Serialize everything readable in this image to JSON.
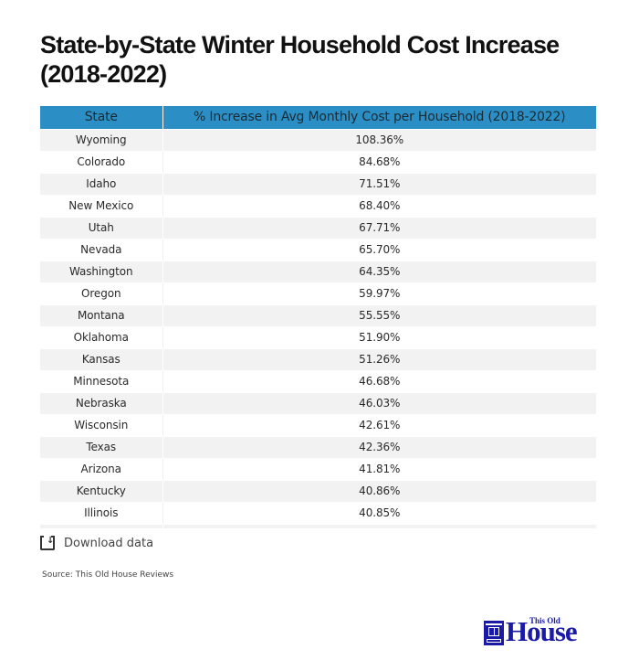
{
  "title": "State-by-State Winter Household Cost Increase (2018-2022)",
  "table": {
    "headers": [
      "State",
      "% Increase in Avg Monthly Cost per Household (2018-2022)"
    ],
    "rows": [
      {
        "state": "Wyoming",
        "value": "108.36%"
      },
      {
        "state": "Colorado",
        "value": "84.68%"
      },
      {
        "state": "Idaho",
        "value": "71.51%"
      },
      {
        "state": "New Mexico",
        "value": "68.40%"
      },
      {
        "state": "Utah",
        "value": "67.71%"
      },
      {
        "state": "Nevada",
        "value": "65.70%"
      },
      {
        "state": "Washington",
        "value": "64.35%"
      },
      {
        "state": "Oregon",
        "value": "59.97%"
      },
      {
        "state": "Montana",
        "value": "55.55%"
      },
      {
        "state": "Oklahoma",
        "value": "51.90%"
      },
      {
        "state": "Kansas",
        "value": "51.26%"
      },
      {
        "state": "Minnesota",
        "value": "46.68%"
      },
      {
        "state": "Nebraska",
        "value": "46.03%"
      },
      {
        "state": "Wisconsin",
        "value": "42.61%"
      },
      {
        "state": "Texas",
        "value": "42.36%"
      },
      {
        "state": "Arizona",
        "value": "41.81%"
      },
      {
        "state": "Kentucky",
        "value": "40.86%"
      },
      {
        "state": "Illinois",
        "value": "40.85%"
      },
      {
        "state": "",
        "value": ""
      }
    ]
  },
  "download": {
    "label": "Download data",
    "icon": "download-icon"
  },
  "source": "Source:  This Old House Reviews",
  "logo": {
    "small": "This Old",
    "big": "House"
  },
  "colors": {
    "header_bg": "#2b8fc5",
    "row_alt": "#f2f2f2",
    "logo": "#1a1aa6"
  }
}
